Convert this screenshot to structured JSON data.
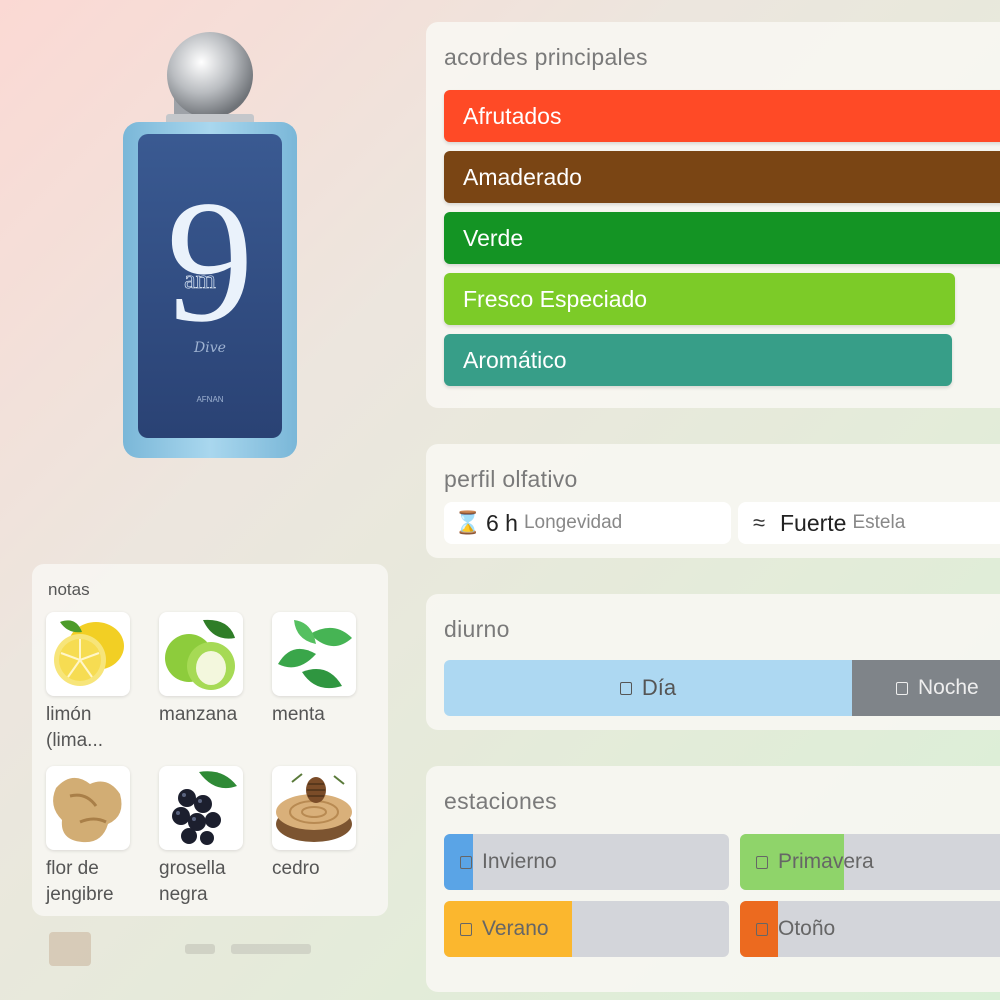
{
  "bottle": {
    "number": "9",
    "am": "am",
    "script": "Dive",
    "brand": "AFNAN"
  },
  "notes": {
    "title": "notas",
    "items": [
      {
        "label": "limón (lima...",
        "icon": "lemon-icon"
      },
      {
        "label": "manzana",
        "icon": "apple-icon"
      },
      {
        "label": "menta",
        "icon": "mint-icon"
      },
      {
        "label": "flor de jengibre",
        "icon": "ginger-icon"
      },
      {
        "label": "grosella negra",
        "icon": "blackcurrant-icon"
      },
      {
        "label": "cedro",
        "icon": "cedar-icon"
      }
    ]
  },
  "accords": {
    "title": "acordes principales",
    "items": [
      {
        "label": "Afrutados",
        "color": "#ff4a26",
        "strength": 1.0
      },
      {
        "label": "Amaderado",
        "color": "#7a4514",
        "strength": 1.0
      },
      {
        "label": "Verde",
        "color": "#149424",
        "strength": 1.0
      },
      {
        "label": "Fresco Especiado",
        "color": "#7ccb28",
        "strength": 0.92
      },
      {
        "label": "Aromático",
        "color": "#379e88",
        "strength": 0.91
      }
    ]
  },
  "perfil": {
    "title": "perfil olfativo",
    "longevity": {
      "icon": "hourglass-icon",
      "value": "6 h",
      "label": "Longevidad"
    },
    "sillage": {
      "icon": "waves-icon",
      "value": "Fuerte",
      "label": "Estela"
    }
  },
  "diurno": {
    "title": "diurno",
    "day_label": "Día",
    "night_label": "Noche",
    "day_color": "#add8f2",
    "night_color": "#7f8489"
  },
  "estaciones": {
    "title": "estaciones",
    "items": [
      {
        "label": "Invierno",
        "color": "#5aa4e6",
        "fill": 0.1
      },
      {
        "label": "Primavera",
        "color": "#8fd46a",
        "fill": 0.36
      },
      {
        "label": "Verano",
        "color": "#fbb72e",
        "fill": 0.44
      },
      {
        "label": "Otoño",
        "color": "#ec6a1f",
        "fill": 0.13
      }
    ]
  }
}
